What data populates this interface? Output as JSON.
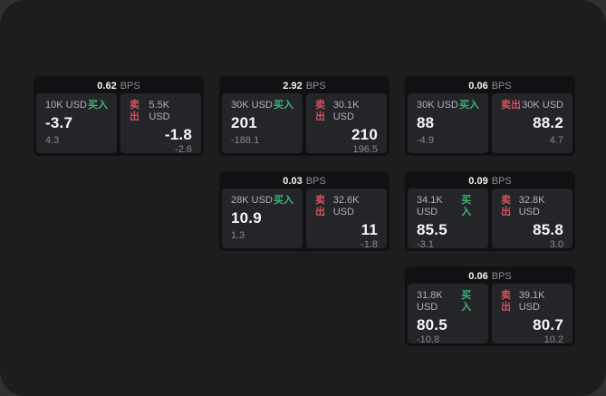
{
  "page": {
    "bps_unit": "BPS",
    "buy_label": "买入",
    "sell_label": "卖出"
  },
  "colors": {
    "buy_green": "#3eb273",
    "sell_red": "#d0525f",
    "frame_bg": "#1d1d1e",
    "card_bg": "#111113",
    "panel_bg": "#242529"
  },
  "cards": [
    {
      "col": 1,
      "row": 1,
      "bps": "0.62",
      "buy": {
        "amount": "10K USD",
        "value": "-3.7",
        "sub": "4.3"
      },
      "sell": {
        "amount": "5.5K USD",
        "value": "-1.8",
        "sub": "-2.6"
      }
    },
    {
      "col": 2,
      "row": 1,
      "bps": "2.92",
      "buy": {
        "amount": "30K USD",
        "value": "201",
        "sub": "-188.1"
      },
      "sell": {
        "amount": "30.1K USD",
        "value": "210",
        "sub": "196.5"
      }
    },
    {
      "col": 3,
      "row": 1,
      "bps": "0.06",
      "buy": {
        "amount": "30K USD",
        "value": "88",
        "sub": "-4.9"
      },
      "sell": {
        "amount": "30K USD",
        "value": "88.2",
        "sub": "4.7"
      }
    },
    {
      "col": 2,
      "row": 2,
      "bps": "0.03",
      "buy": {
        "amount": "28K USD",
        "value": "10.9",
        "sub": "1.3"
      },
      "sell": {
        "amount": "32.6K USD",
        "value": "11",
        "sub": "-1.8"
      }
    },
    {
      "col": 3,
      "row": 2,
      "bps": "0.09",
      "buy": {
        "amount": "34.1K USD",
        "value": "85.5",
        "sub": "-3.1"
      },
      "sell": {
        "amount": "32.8K USD",
        "value": "85.8",
        "sub": "3.0"
      }
    },
    {
      "col": 3,
      "row": 3,
      "bps": "0.06",
      "buy": {
        "amount": "31.8K USD",
        "value": "80.5",
        "sub": "-10.8"
      },
      "sell": {
        "amount": "39.1K USD",
        "value": "80.7",
        "sub": "10.2"
      }
    }
  ]
}
